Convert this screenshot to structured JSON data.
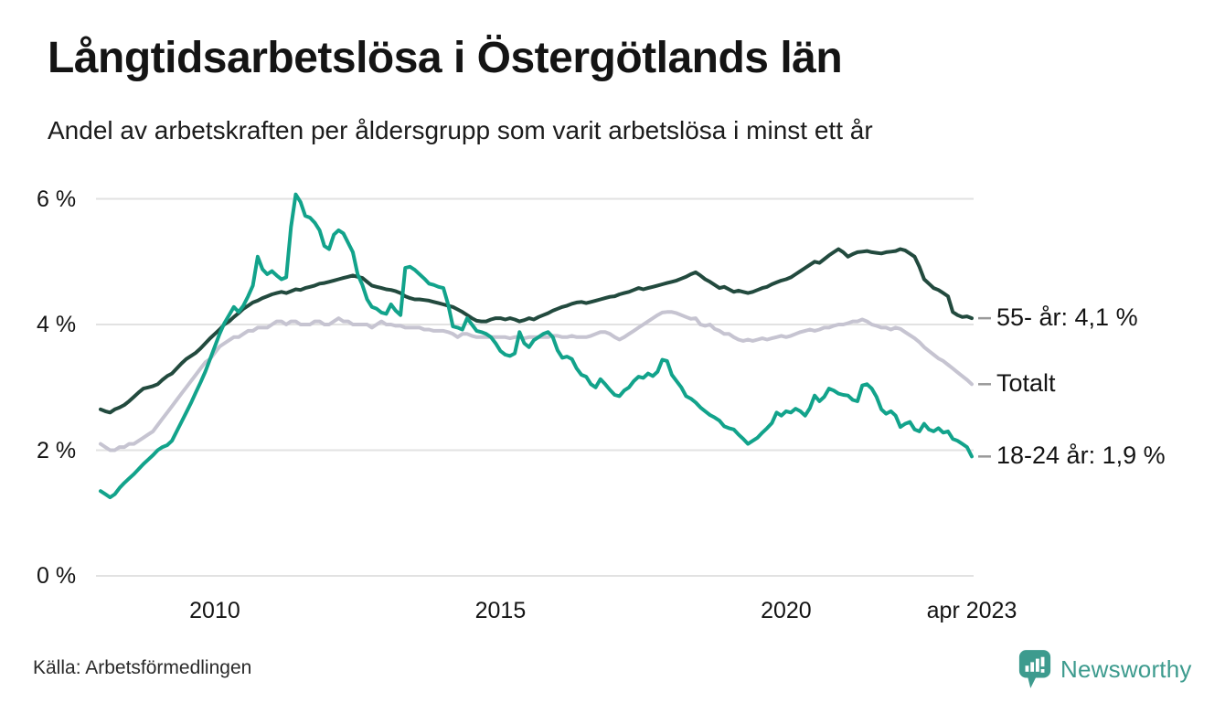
{
  "header": {
    "title": "Långtidsarbetslösa i Östergötlands län",
    "subtitle": "Andel av arbetskraften per åldersgrupp som varit arbetslösa i minst ett år"
  },
  "footer": {
    "source": "Källa: Arbetsförmedlingen",
    "brand": "Newsworthy"
  },
  "colors": {
    "grid": "#e2e2e2",
    "axis_text": "#141414",
    "label_dash": "#999999",
    "brand_teal": "#3d9b8e"
  },
  "chart_data": {
    "type": "line",
    "frequency": "monthly",
    "start": "2008-01",
    "end": "2023-04",
    "grid": "horizontal",
    "legend_position": "right-end-labels",
    "ylim": [
      0,
      6.3
    ],
    "y_ticks": [
      {
        "label": "6 %",
        "value": 6
      },
      {
        "label": "4 %",
        "value": 4
      },
      {
        "label": "2 %",
        "value": 2
      },
      {
        "label": "0 %",
        "value": 0
      }
    ],
    "x_ticks": [
      {
        "label": "2010",
        "month_index": 24
      },
      {
        "label": "2015",
        "month_index": 84
      },
      {
        "label": "2020",
        "month_index": 144
      },
      {
        "label": "apr 2023",
        "month_index": 183
      }
    ],
    "series": [
      {
        "name": "55- år",
        "end_label": "55- år: 4,1 %",
        "end_value_label": "4,1 %",
        "color": "#224a3e",
        "values": [
          2.65,
          2.62,
          2.6,
          2.65,
          2.68,
          2.72,
          2.78,
          2.85,
          2.92,
          2.98,
          3.0,
          3.02,
          3.05,
          3.12,
          3.18,
          3.22,
          3.3,
          3.38,
          3.45,
          3.5,
          3.55,
          3.62,
          3.7,
          3.78,
          3.85,
          3.92,
          4.0,
          4.05,
          4.12,
          4.18,
          4.25,
          4.3,
          4.35,
          4.38,
          4.42,
          4.45,
          4.48,
          4.5,
          4.52,
          4.5,
          4.53,
          4.56,
          4.55,
          4.58,
          4.6,
          4.62,
          4.65,
          4.66,
          4.68,
          4.7,
          4.72,
          4.74,
          4.76,
          4.78,
          4.76,
          4.74,
          4.68,
          4.62,
          4.6,
          4.58,
          4.56,
          4.55,
          4.53,
          4.5,
          4.45,
          4.42,
          4.4,
          4.4,
          4.39,
          4.38,
          4.36,
          4.34,
          4.32,
          4.3,
          4.28,
          4.24,
          4.2,
          4.15,
          4.1,
          4.06,
          4.05,
          4.05,
          4.08,
          4.1,
          4.1,
          4.08,
          4.1,
          4.08,
          4.05,
          4.07,
          4.1,
          4.08,
          4.12,
          4.15,
          4.18,
          4.22,
          4.25,
          4.28,
          4.3,
          4.33,
          4.35,
          4.36,
          4.34,
          4.36,
          4.38,
          4.4,
          4.42,
          4.44,
          4.45,
          4.48,
          4.5,
          4.52,
          4.55,
          4.58,
          4.56,
          4.58,
          4.6,
          4.62,
          4.64,
          4.66,
          4.68,
          4.7,
          4.73,
          4.76,
          4.8,
          4.83,
          4.78,
          4.72,
          4.68,
          4.63,
          4.58,
          4.6,
          4.56,
          4.52,
          4.54,
          4.52,
          4.5,
          4.52,
          4.55,
          4.58,
          4.6,
          4.64,
          4.67,
          4.7,
          4.72,
          4.75,
          4.8,
          4.85,
          4.9,
          4.95,
          5.0,
          4.98,
          5.04,
          5.1,
          5.15,
          5.2,
          5.15,
          5.08,
          5.12,
          5.15,
          5.16,
          5.17,
          5.15,
          5.14,
          5.13,
          5.15,
          5.16,
          5.17,
          5.2,
          5.18,
          5.13,
          5.08,
          4.92,
          4.72,
          4.65,
          4.58,
          4.55,
          4.5,
          4.45,
          4.2,
          4.15,
          4.12,
          4.13,
          4.1
        ]
      },
      {
        "name": "Totalt",
        "end_label": "Totalt",
        "end_value_label": "",
        "color": "#c6c4d1",
        "values": [
          2.1,
          2.05,
          2.0,
          2.0,
          2.05,
          2.05,
          2.1,
          2.1,
          2.15,
          2.2,
          2.25,
          2.3,
          2.4,
          2.5,
          2.6,
          2.7,
          2.8,
          2.9,
          3.0,
          3.1,
          3.2,
          3.3,
          3.4,
          3.45,
          3.55,
          3.65,
          3.7,
          3.75,
          3.8,
          3.8,
          3.85,
          3.9,
          3.9,
          3.95,
          3.95,
          3.95,
          4.0,
          4.05,
          4.05,
          4.0,
          4.05,
          4.05,
          4.0,
          4.0,
          4.0,
          4.05,
          4.05,
          4.0,
          4.0,
          4.05,
          4.1,
          4.05,
          4.05,
          4.0,
          4.0,
          4.0,
          4.0,
          3.95,
          4.0,
          4.05,
          4.0,
          4.0,
          3.98,
          3.98,
          3.95,
          3.95,
          3.95,
          3.95,
          3.92,
          3.92,
          3.9,
          3.9,
          3.9,
          3.88,
          3.85,
          3.8,
          3.85,
          3.85,
          3.82,
          3.8,
          3.8,
          3.8,
          3.8,
          3.8,
          3.8,
          3.8,
          3.78,
          3.8,
          3.8,
          3.78,
          3.8,
          3.8,
          3.8,
          3.8,
          3.8,
          3.82,
          3.82,
          3.8,
          3.8,
          3.82,
          3.8,
          3.8,
          3.8,
          3.82,
          3.85,
          3.88,
          3.88,
          3.85,
          3.8,
          3.76,
          3.8,
          3.85,
          3.9,
          3.95,
          4.0,
          4.05,
          4.1,
          4.15,
          4.19,
          4.2,
          4.2,
          4.18,
          4.15,
          4.12,
          4.09,
          4.1,
          4.0,
          3.98,
          4.0,
          3.93,
          3.9,
          3.85,
          3.85,
          3.8,
          3.76,
          3.74,
          3.76,
          3.74,
          3.76,
          3.78,
          3.76,
          3.78,
          3.8,
          3.82,
          3.8,
          3.82,
          3.85,
          3.88,
          3.9,
          3.92,
          3.9,
          3.92,
          3.95,
          3.95,
          3.98,
          4.0,
          4.0,
          4.02,
          4.05,
          4.05,
          4.08,
          4.05,
          4.0,
          3.98,
          3.95,
          3.95,
          3.92,
          3.95,
          3.93,
          3.88,
          3.83,
          3.78,
          3.72,
          3.64,
          3.58,
          3.52,
          3.46,
          3.42,
          3.36,
          3.3,
          3.24,
          3.18,
          3.12,
          3.05
        ]
      },
      {
        "name": "18-24 år",
        "end_label": "18-24 år: 1,9 %",
        "end_value_label": "1,9 %",
        "color": "#12a38b",
        "values": [
          1.35,
          1.3,
          1.25,
          1.3,
          1.4,
          1.48,
          1.55,
          1.62,
          1.7,
          1.78,
          1.85,
          1.92,
          2.0,
          2.05,
          2.08,
          2.15,
          2.3,
          2.45,
          2.6,
          2.75,
          2.92,
          3.08,
          3.25,
          3.45,
          3.65,
          3.85,
          4.02,
          4.15,
          4.28,
          4.2,
          4.3,
          4.45,
          4.62,
          5.08,
          4.88,
          4.8,
          4.85,
          4.78,
          4.72,
          4.75,
          5.55,
          6.07,
          5.95,
          5.73,
          5.7,
          5.62,
          5.5,
          5.25,
          5.2,
          5.43,
          5.5,
          5.45,
          5.3,
          5.15,
          4.8,
          4.63,
          4.4,
          4.28,
          4.25,
          4.19,
          4.17,
          4.32,
          4.22,
          4.15,
          4.9,
          4.92,
          4.87,
          4.8,
          4.73,
          4.65,
          4.63,
          4.6,
          4.58,
          4.32,
          3.97,
          3.95,
          3.92,
          4.1,
          4.0,
          3.9,
          3.88,
          3.85,
          3.8,
          3.7,
          3.58,
          3.52,
          3.5,
          3.54,
          3.88,
          3.7,
          3.64,
          3.75,
          3.8,
          3.85,
          3.88,
          3.8,
          3.59,
          3.47,
          3.49,
          3.45,
          3.3,
          3.2,
          3.17,
          3.05,
          3.0,
          3.13,
          3.05,
          2.96,
          2.88,
          2.86,
          2.95,
          3.0,
          3.1,
          3.17,
          3.15,
          3.22,
          3.18,
          3.25,
          3.44,
          3.42,
          3.2,
          3.1,
          3.0,
          2.86,
          2.82,
          2.76,
          2.68,
          2.62,
          2.56,
          2.52,
          2.47,
          2.38,
          2.35,
          2.33,
          2.25,
          2.18,
          2.1,
          2.15,
          2.2,
          2.28,
          2.35,
          2.43,
          2.6,
          2.55,
          2.62,
          2.6,
          2.66,
          2.62,
          2.55,
          2.67,
          2.87,
          2.78,
          2.85,
          2.98,
          2.95,
          2.9,
          2.88,
          2.87,
          2.8,
          2.78,
          3.03,
          3.05,
          2.98,
          2.85,
          2.65,
          2.58,
          2.62,
          2.55,
          2.37,
          2.42,
          2.45,
          2.33,
          2.3,
          2.42,
          2.33,
          2.3,
          2.35,
          2.28,
          2.3,
          2.18,
          2.15,
          2.1,
          2.05,
          1.9
        ]
      }
    ]
  }
}
